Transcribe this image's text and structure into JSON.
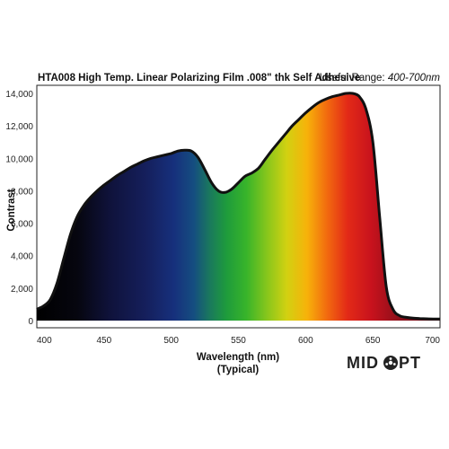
{
  "chart_data": {
    "type": "area",
    "title": "HTA008 High Temp. Linear Polarizing Film .008\" thk Self Adhesive",
    "subtitle_label": "Useful Range:",
    "subtitle_value": "400-700nm",
    "xlabel": "Wavelength (nm)",
    "xlabel_sub": "(Typical)",
    "ylabel": "Contrast",
    "xlim": [
      400,
      700
    ],
    "ylim": [
      0,
      14500
    ],
    "xticks": [
      400,
      450,
      500,
      550,
      600,
      650,
      700
    ],
    "xtick_labels": [
      "400",
      "450",
      "500",
      "550",
      "600",
      "650",
      "700"
    ],
    "yticks": [
      0,
      2000,
      4000,
      6000,
      8000,
      10000,
      12000,
      14000
    ],
    "ytick_labels": [
      "0",
      "2,000",
      "4,000",
      "6,000",
      "8,000",
      "10,000",
      "12,000",
      "14,000"
    ],
    "grid": false,
    "series": [
      {
        "x": [
          400,
          405,
          410,
          415,
          420,
          425,
          430,
          435,
          440,
          445,
          450,
          455,
          460,
          465,
          470,
          475,
          480,
          485,
          490,
          495,
          500,
          505,
          510,
          515,
          520,
          525,
          530,
          535,
          540,
          545,
          550,
          555,
          560,
          565,
          570,
          575,
          580,
          585,
          590,
          595,
          600,
          605,
          610,
          615,
          620,
          625,
          630,
          635,
          640,
          645,
          650,
          655,
          660,
          665,
          670,
          675,
          680,
          685,
          690,
          695,
          700
        ],
        "y": [
          700,
          900,
          1300,
          2300,
          3800,
          5300,
          6400,
          7100,
          7600,
          8000,
          8350,
          8650,
          8950,
          9200,
          9450,
          9650,
          9850,
          10000,
          10100,
          10200,
          10300,
          10450,
          10500,
          10450,
          10050,
          9300,
          8500,
          8000,
          7900,
          8100,
          8500,
          8900,
          9100,
          9400,
          9950,
          10500,
          11000,
          11500,
          12000,
          12400,
          12800,
          13150,
          13450,
          13650,
          13800,
          13900,
          14000,
          14000,
          13800,
          13000,
          11000,
          6500,
          2100,
          700,
          300,
          200,
          150,
          130,
          110,
          100,
          100
        ]
      }
    ]
  },
  "brand": {
    "logo_text": "MIDOPT"
  }
}
